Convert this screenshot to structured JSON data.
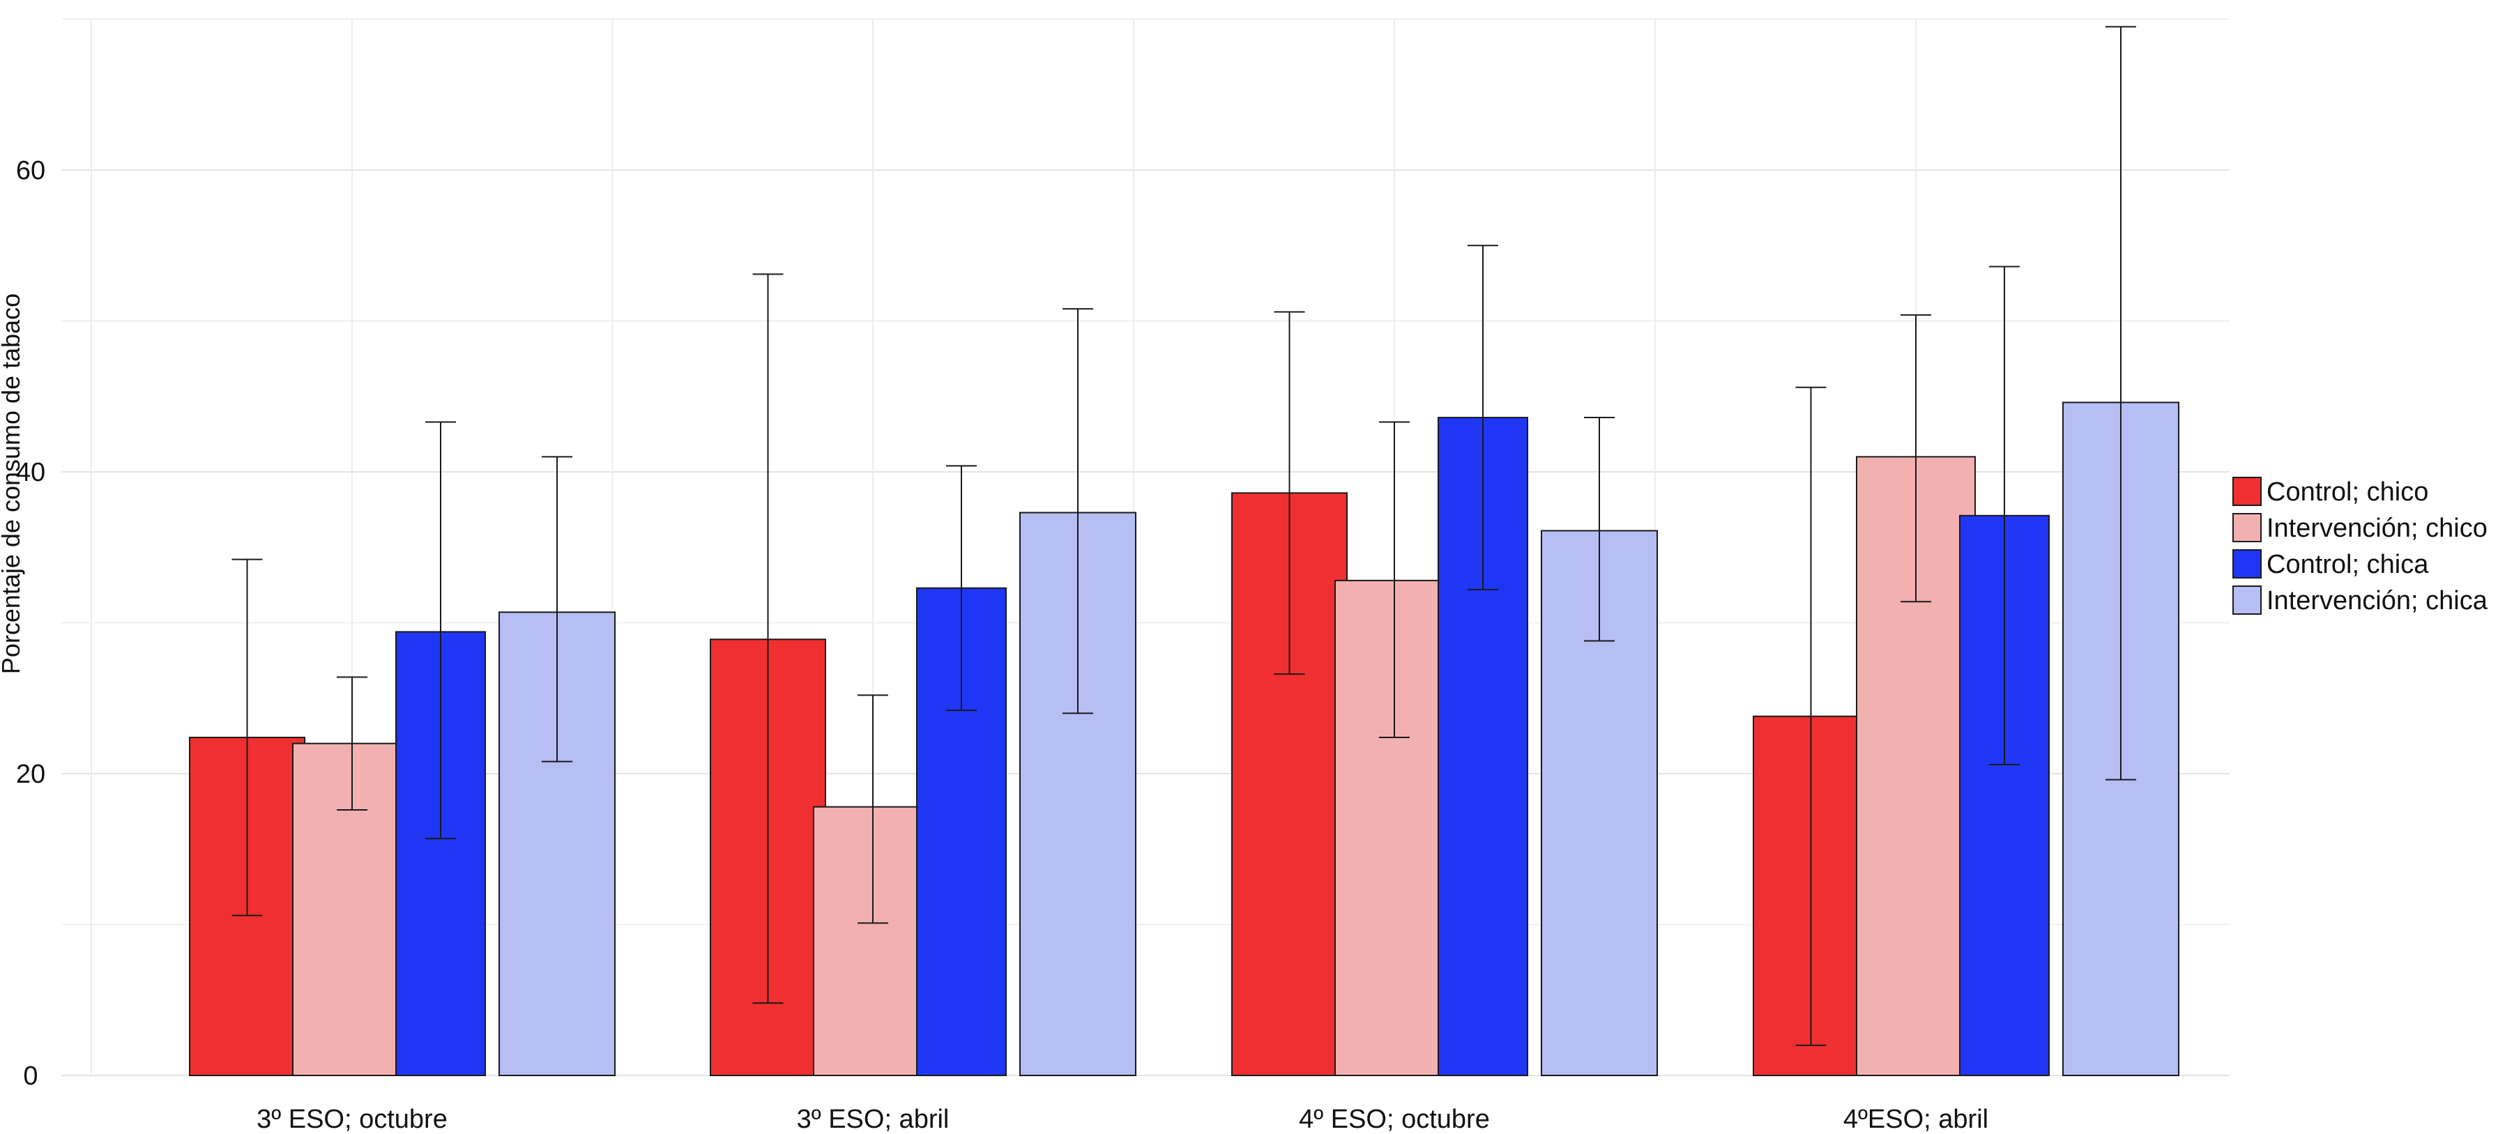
{
  "chart_data": {
    "type": "bar",
    "title": "",
    "xlabel": "",
    "ylabel": "Porcentaje de consumo de tabaco",
    "ylim": [
      0,
      70
    ],
    "yticks": [
      0,
      20,
      40,
      60
    ],
    "grid": true,
    "legend_position": "right",
    "categories": [
      "3º ESO; octubre",
      "3º ESO; abril",
      "4º ESO; octubre",
      "4ºESO; abril"
    ],
    "series": [
      {
        "name": "Control; chico",
        "color": "#F03030",
        "values": [
          22.4,
          28.9,
          38.6,
          23.8
        ],
        "err_low": [
          10.6,
          4.8,
          26.6,
          2.0
        ],
        "err_high": [
          34.2,
          53.1,
          50.6,
          45.6
        ]
      },
      {
        "name": "Intervención; chico",
        "color": "#F3B0B0",
        "values": [
          22.0,
          17.8,
          32.8,
          41.0
        ],
        "err_low": [
          17.6,
          10.1,
          22.4,
          31.4
        ],
        "err_high": [
          26.4,
          25.2,
          43.3,
          50.4
        ]
      },
      {
        "name": "Control; chica",
        "color": "#2036F5",
        "values": [
          29.4,
          32.3,
          43.6,
          37.1
        ],
        "err_low": [
          15.7,
          24.2,
          32.2,
          20.6
        ],
        "err_high": [
          43.3,
          40.4,
          55.0,
          53.6
        ]
      },
      {
        "name": "Intervención; chica",
        "color": "#B6BEF3",
        "values": [
          30.7,
          37.3,
          36.1,
          44.6
        ],
        "err_low": [
          20.8,
          24.0,
          28.8,
          19.6
        ],
        "err_high": [
          41.0,
          50.8,
          43.6,
          69.5
        ]
      }
    ]
  }
}
